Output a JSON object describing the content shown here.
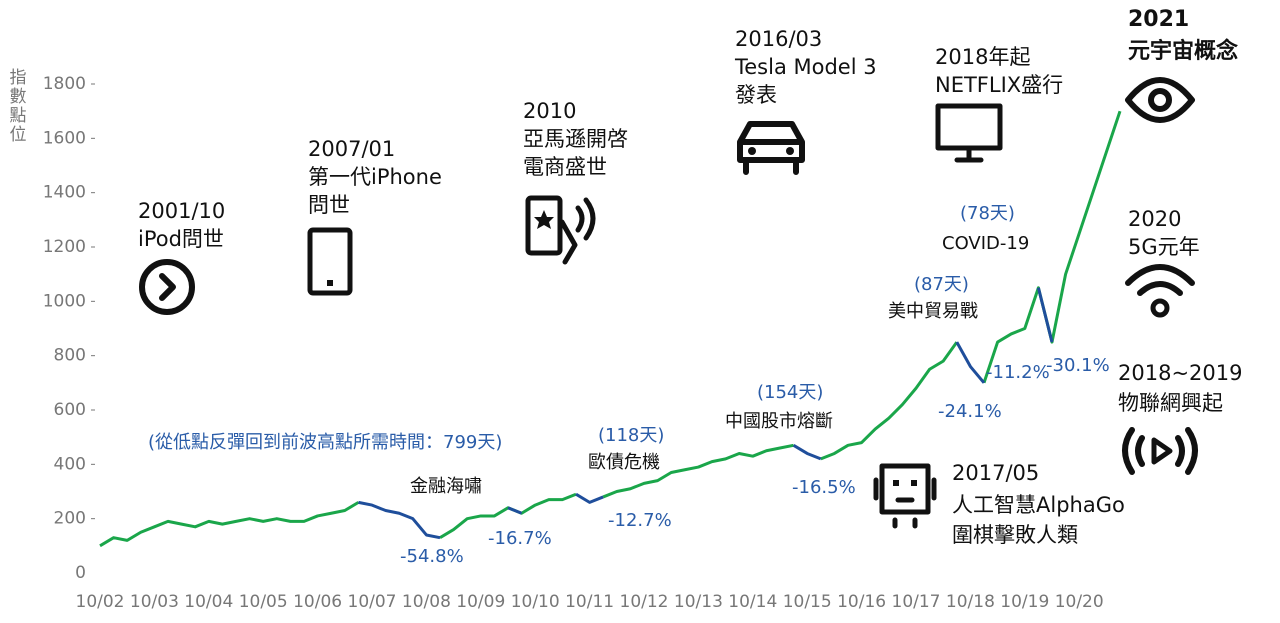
{
  "chart_data": {
    "type": "line",
    "y_label": "指數點位",
    "categories": [
      "10/02",
      null,
      null,
      null,
      "10/03",
      null,
      null,
      null,
      "10/04",
      null,
      null,
      null,
      "10/05",
      null,
      null,
      null,
      "10/06",
      null,
      null,
      null,
      "10/07",
      null,
      null,
      null,
      "10/08",
      null,
      null,
      null,
      "10/09",
      null,
      null,
      null,
      "10/10",
      null,
      null,
      null,
      "10/11",
      null,
      null,
      null,
      "10/12",
      null,
      null,
      null,
      "10/13",
      null,
      null,
      null,
      "10/14",
      null,
      null,
      null,
      "10/15",
      null,
      null,
      null,
      "10/16",
      null,
      null,
      null,
      "10/17",
      null,
      null,
      null,
      "10/18",
      null,
      null,
      null,
      "10/19",
      null,
      null,
      null,
      "10/20",
      null,
      null,
      null
    ],
    "series": [
      {
        "color": "#1aa64a",
        "values": [
          100,
          130,
          120,
          150,
          170,
          190,
          180,
          170,
          190,
          180,
          190,
          200,
          190,
          200,
          190,
          190,
          210,
          220,
          230,
          260,
          null,
          null,
          null,
          null,
          null,
          130,
          160,
          200,
          210,
          210,
          240,
          220,
          250,
          270,
          270,
          290,
          null,
          280,
          300,
          310,
          330,
          340,
          370,
          380,
          390,
          410,
          420,
          440,
          430,
          450,
          460,
          470,
          null,
          420,
          440,
          470,
          480,
          530,
          570,
          620,
          680,
          750,
          780,
          850,
          null,
          700,
          850,
          880,
          900,
          1050,
          850,
          1100,
          1250,
          1400,
          1550,
          1700
        ]
      },
      {
        "color": "#1f4e9b",
        "values": [
          null,
          null,
          null,
          null,
          null,
          null,
          null,
          null,
          null,
          null,
          null,
          null,
          null,
          null,
          null,
          null,
          null,
          null,
          null,
          260,
          250,
          230,
          220,
          200,
          140,
          130,
          null,
          null,
          null,
          null,
          240,
          220,
          null,
          null,
          null,
          290,
          260,
          280,
          null,
          null,
          null,
          null,
          null,
          null,
          null,
          null,
          null,
          null,
          null,
          null,
          null,
          470,
          440,
          420,
          null,
          null,
          null,
          null,
          null,
          null,
          null,
          null,
          null,
          850,
          760,
          700,
          null,
          null,
          null,
          1050,
          850,
          null,
          null,
          null,
          null,
          null
        ]
      }
    ],
    "ylim": [
      0,
      1800
    ],
    "yticks": [
      0,
      200,
      400,
      600,
      800,
      1000,
      1200,
      1400,
      1600,
      1800
    ],
    "annotations": [
      "2001/10",
      "iPod問世",
      "2007/01",
      "第一代iPhone",
      "問世",
      "2010",
      "亞馬遜開啓",
      "電商盛世",
      "2016/03",
      "Tesla Model 3",
      "發表",
      "2018年起",
      "NETFLIX盛行",
      "2021",
      "元宇宙概念",
      "2020",
      "5G元年",
      "2018~2019",
      "物聯網興起",
      "2017/05",
      "人工智慧AlphaGo",
      "圍棋擊敗人類",
      "(從低點反彈回到前波高點所需時間：799天)",
      "金融海嘯",
      "-54.8%",
      "-16.7%",
      "(118天)",
      "歐債危機",
      "-12.7%",
      "(154天)",
      "中國股市熔斷",
      "-16.5%",
      "(87天)",
      "美中貿易戰",
      "-24.1%",
      "-11.2%",
      "(78天)",
      "COVID-19",
      "-30.1%"
    ]
  }
}
